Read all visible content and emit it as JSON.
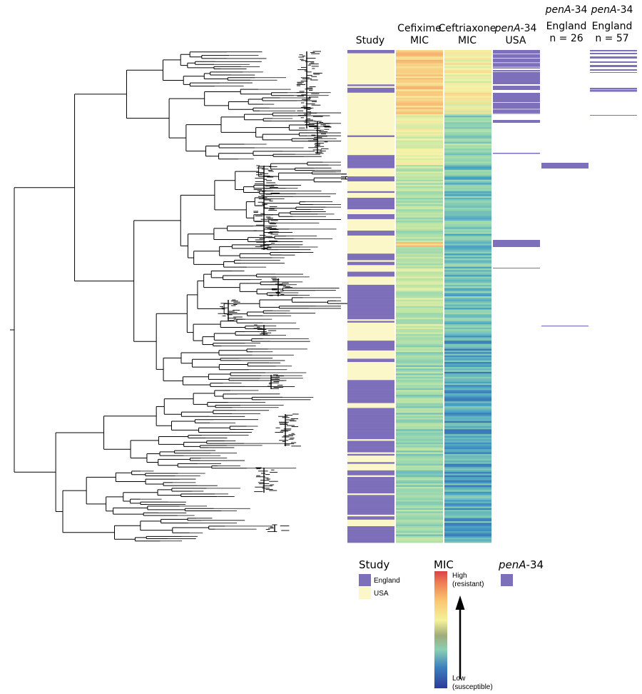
{
  "columns": {
    "study": "Study",
    "cefixime": [
      "Cefixime",
      "MIC"
    ],
    "ceftriaxone": [
      "Ceftriaxone",
      "MIC"
    ],
    "pena_usa": {
      "gene": "penA",
      "suffix": "-34",
      "sub": "USA"
    },
    "pena_eng26": {
      "gene": "penA",
      "suffix": "-34",
      "sub": "England",
      "n": "n = 26"
    },
    "pena_eng57": {
      "gene": "penA",
      "suffix": "-34",
      "sub": "England",
      "n": "n = 57"
    }
  },
  "legend": {
    "study": {
      "title": "Study",
      "items": [
        {
          "label": "England",
          "color": "#7d6fba"
        },
        {
          "label": "USA",
          "color": "#fbf7c8"
        }
      ]
    },
    "mic": {
      "title": "MIC",
      "high": [
        "High",
        "(resistant)"
      ],
      "low": [
        "Low",
        "(susceptible)"
      ]
    },
    "pena": {
      "gene": "penA",
      "suffix": "-34",
      "color": "#7d6fba"
    }
  },
  "colors": {
    "england": "#7d6fba",
    "usa": "#fbf7c8",
    "mic_scale": [
      "#2c3b9a",
      "#4fa3c9",
      "#a4d9a9",
      "#f4f1a0",
      "#f9c06a",
      "#d9414a"
    ]
  }
}
